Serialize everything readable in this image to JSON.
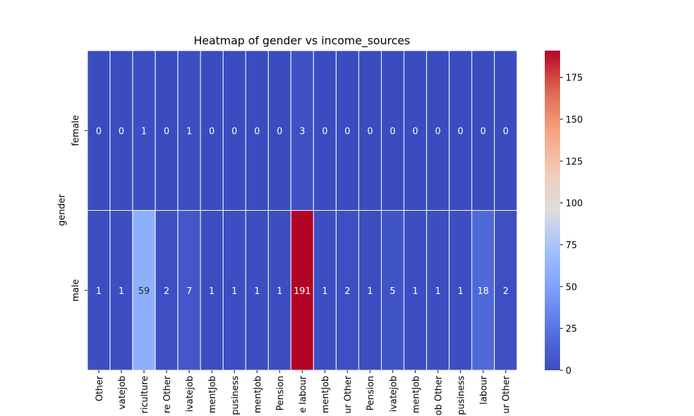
{
  "chart_data": {
    "type": "heatmap",
    "title": "Heatmap of gender vs income_sources",
    "ylabel": "gender",
    "xlabel": "",
    "rows": [
      "female",
      "male"
    ],
    "columns": [
      "Other",
      "vatejob",
      "riculture",
      "re Other",
      "ivatejob",
      "mentJob",
      "pusiness",
      "mentJob",
      "Pension",
      "e labour",
      "mentJob",
      "ur Other",
      "Pension",
      "ivatejob",
      "mentJob",
      "ob Other",
      "pusiness",
      "labour",
      "ur Other"
    ],
    "values": [
      [
        0,
        0,
        1,
        0,
        1,
        0,
        0,
        0,
        0,
        3,
        0,
        0,
        0,
        0,
        0,
        0,
        0,
        0,
        0
      ],
      [
        1,
        1,
        59,
        2,
        7,
        1,
        1,
        1,
        1,
        191,
        1,
        2,
        1,
        5,
        1,
        1,
        1,
        18,
        2
      ]
    ],
    "colormap": "coolwarm",
    "vmin": 0,
    "vmax": 191,
    "colorbar_ticks": [
      0,
      25,
      50,
      75,
      100,
      125,
      150,
      175
    ],
    "annotations": true
  }
}
